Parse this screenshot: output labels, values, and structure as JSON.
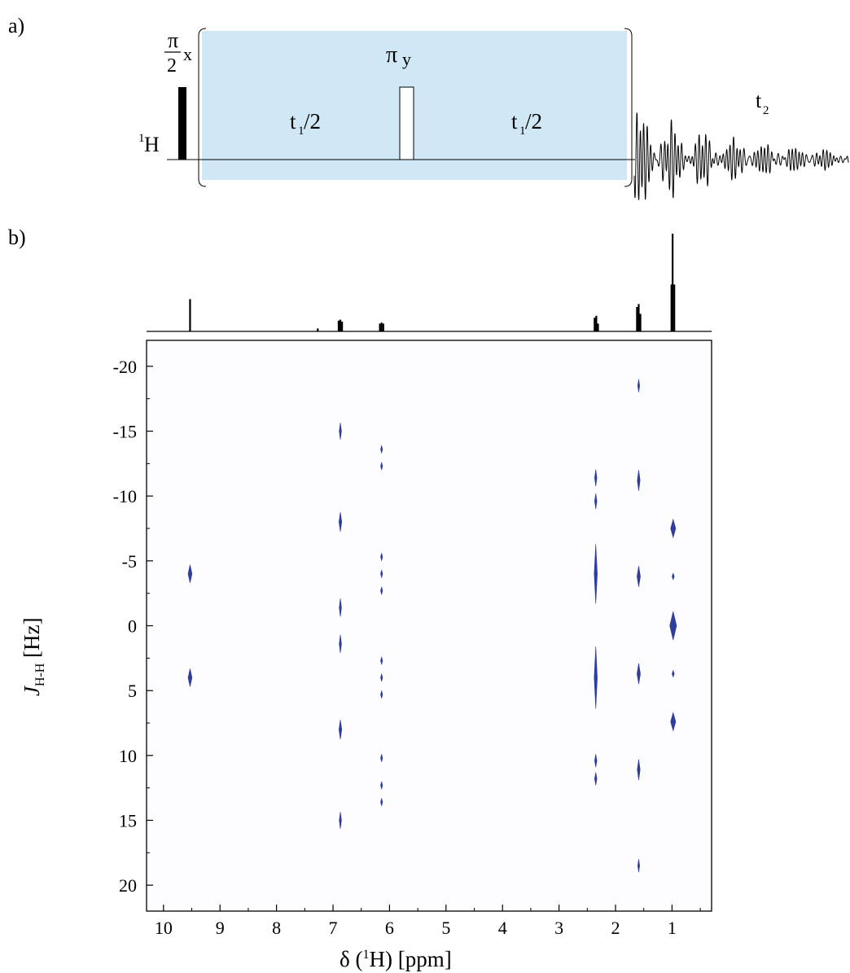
{
  "panel_a": {
    "panel_label": "a)",
    "pulse90": {
      "numerator": "π",
      "denominator": "2",
      "phase": "x"
    },
    "pulse180": {
      "symbol": "π",
      "phase": "y"
    },
    "nucleus": {
      "mass": "1",
      "element": "H"
    },
    "delay_left": {
      "t": "t",
      "sub": "1",
      "rest": "/2"
    },
    "delay_right": {
      "t": "t",
      "sub": "1",
      "rest": "/2"
    },
    "acquisition": {
      "t": "t",
      "sub": "2"
    },
    "colors": {
      "shade": "#d0e8f6",
      "pulse": "#000000"
    }
  },
  "panel_b": {
    "panel_label": "b)"
  },
  "chart_data": {
    "type": "scatter",
    "subtype": "2D J-resolved NMR contour plot with 1D projection",
    "xlabel": {
      "main": "δ (",
      "sup": "1",
      "nuc": "H) [ppm]"
    },
    "ylabel": {
      "italic": "J",
      "sub": "H-H",
      "unit": " [Hz]"
    },
    "xlim": [
      10.3,
      0.3
    ],
    "ylim": [
      22,
      -22
    ],
    "x_ticks": [
      "10",
      "9",
      "8",
      "7",
      "6",
      "5",
      "4",
      "3",
      "2",
      "1"
    ],
    "y_ticks": [
      "-20",
      "-15",
      "-10",
      "-5",
      "0",
      "5",
      "10",
      "15",
      "20"
    ],
    "grid": false,
    "contour_color": "#2e3e9a",
    "multiplets": [
      {
        "shift": 9.53,
        "j": [
          -4.0,
          4.0
        ],
        "w": [
          0.07,
          0.07
        ],
        "h": [
          1.4,
          1.4
        ]
      },
      {
        "shift": 6.87,
        "j": [
          -15.0,
          -8.0,
          -1.4,
          1.4,
          8.0,
          15.0
        ],
        "w": [
          0.04,
          0.05,
          0.04,
          0.04,
          0.05,
          0.04
        ],
        "h": [
          1.3,
          1.5,
          1.4,
          1.4,
          1.5,
          1.3
        ]
      },
      {
        "shift": 6.14,
        "j": [
          -13.6,
          -12.3,
          -5.3,
          -4.0,
          -2.7,
          2.7,
          4.0,
          5.3,
          10.2,
          12.3,
          13.6
        ],
        "w": [
          0.025,
          0.025,
          0.025,
          0.025,
          0.025,
          0.025,
          0.025,
          0.025,
          0.025,
          0.025,
          0.025
        ],
        "h": [
          0.6,
          0.6,
          0.6,
          0.6,
          0.6,
          0.6,
          0.6,
          0.6,
          0.6,
          0.6,
          0.6
        ]
      },
      {
        "shift": 2.35,
        "j": [
          -11.4,
          -9.6,
          -4.0,
          4.0,
          10.4,
          11.8
        ],
        "w": [
          0.04,
          0.04,
          0.055,
          0.055,
          0.04,
          0.04
        ],
        "h": [
          1.3,
          1.2,
          4.6,
          4.8,
          1.0,
          1.0
        ]
      },
      {
        "shift": 1.59,
        "j": [
          -18.5,
          -11.2,
          -3.8,
          3.7,
          11.1,
          18.5
        ],
        "w": [
          0.035,
          0.05,
          0.06,
          0.06,
          0.05,
          0.035
        ],
        "h": [
          1.0,
          1.6,
          1.6,
          1.6,
          1.6,
          1.0
        ]
      },
      {
        "shift": 0.98,
        "j": [
          -7.5,
          -3.8,
          0.0,
          3.7,
          7.4
        ],
        "w": [
          0.09,
          0.04,
          0.12,
          0.04,
          0.09
        ],
        "h": [
          1.4,
          0.5,
          2.2,
          0.5,
          1.4
        ]
      }
    ],
    "projection": {
      "baseline_color": "#000000",
      "peaks": [
        {
          "shift": 9.53,
          "height": 0.33
        },
        {
          "shift": 7.27,
          "height": 0.03
        },
        {
          "shift": 6.9,
          "height": 0.11
        },
        {
          "shift": 6.87,
          "height": 0.12
        },
        {
          "shift": 6.84,
          "height": 0.1
        },
        {
          "shift": 6.17,
          "height": 0.08
        },
        {
          "shift": 6.14,
          "height": 0.09
        },
        {
          "shift": 6.11,
          "height": 0.08
        },
        {
          "shift": 2.37,
          "height": 0.14
        },
        {
          "shift": 2.34,
          "height": 0.16
        },
        {
          "shift": 2.31,
          "height": 0.08
        },
        {
          "shift": 1.62,
          "height": 0.25
        },
        {
          "shift": 1.59,
          "height": 0.28
        },
        {
          "shift": 1.56,
          "height": 0.18
        },
        {
          "shift": 1.01,
          "height": 0.48
        },
        {
          "shift": 0.99,
          "height": 1.0
        },
        {
          "shift": 0.96,
          "height": 0.48
        }
      ]
    }
  }
}
